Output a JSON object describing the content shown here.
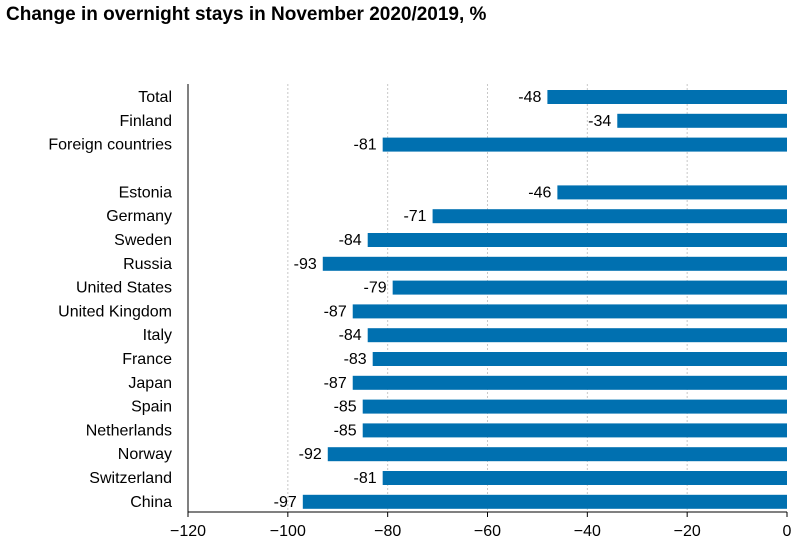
{
  "chart_data": {
    "type": "bar",
    "orientation": "horizontal",
    "title": "Change in overnight stays in November 2020/2019, %",
    "categories": [
      "Total",
      "Finland",
      "Foreign countries",
      "Estonia",
      "Germany",
      "Sweden",
      "Russia",
      "United States",
      "United Kingdom",
      "Italy",
      "France",
      "Japan",
      "Spain",
      "Netherlands",
      "Norway",
      "Switzerland",
      "China"
    ],
    "values": [
      -48,
      -34,
      -81,
      -46,
      -71,
      -84,
      -93,
      -79,
      -87,
      -84,
      -83,
      -87,
      -85,
      -85,
      -92,
      -81,
      -97
    ],
    "group_breaks_after": [
      "Foreign countries"
    ],
    "xlim": [
      -120,
      0
    ],
    "xticks": [
      -120,
      -100,
      -80,
      -60,
      -40,
      -20,
      0
    ],
    "xlabel": "",
    "ylabel": "",
    "grid": "vertical dashed",
    "legend": "none",
    "bar_color": "#0070B0"
  }
}
